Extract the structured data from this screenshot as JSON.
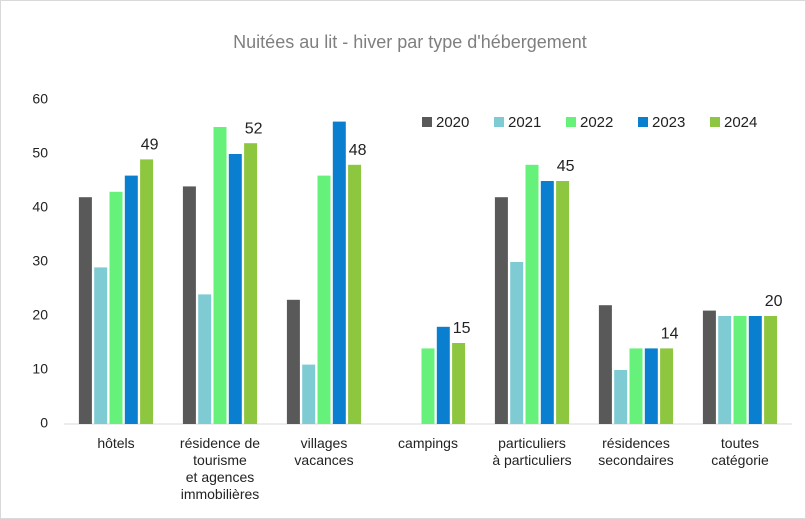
{
  "chart_data": {
    "type": "bar",
    "title": "Nuitées au lit - hiver par type d'hébergement",
    "categories": [
      "hôtels",
      "résidence de\ntourisme\net agences\nimmobilières",
      "villages\nvacances",
      "campings",
      "particuliers\nà particuliers",
      "résidences\nsecondaires",
      "toutes\ncatégorie"
    ],
    "series": [
      {
        "name": "2020",
        "color": "#595959",
        "values": [
          42,
          44,
          23,
          null,
          42,
          22,
          21
        ]
      },
      {
        "name": "2021",
        "color": "#7ecbd3",
        "values": [
          29,
          24,
          11,
          null,
          30,
          10,
          20
        ]
      },
      {
        "name": "2022",
        "color": "#66f27a",
        "values": [
          43,
          55,
          46,
          14,
          48,
          14,
          20
        ]
      },
      {
        "name": "2023",
        "color": "#0a7fd0",
        "values": [
          46,
          50,
          56,
          18,
          45,
          14,
          20
        ]
      },
      {
        "name": "2024",
        "color": "#8dc63f",
        "values": [
          49,
          52,
          48,
          15,
          45,
          14,
          20
        ],
        "show_labels": true
      }
    ],
    "ylim": [
      0,
      60
    ],
    "yticks": [
      0,
      10,
      20,
      30,
      40,
      50,
      60
    ],
    "grid": false,
    "legend": "top-right"
  }
}
